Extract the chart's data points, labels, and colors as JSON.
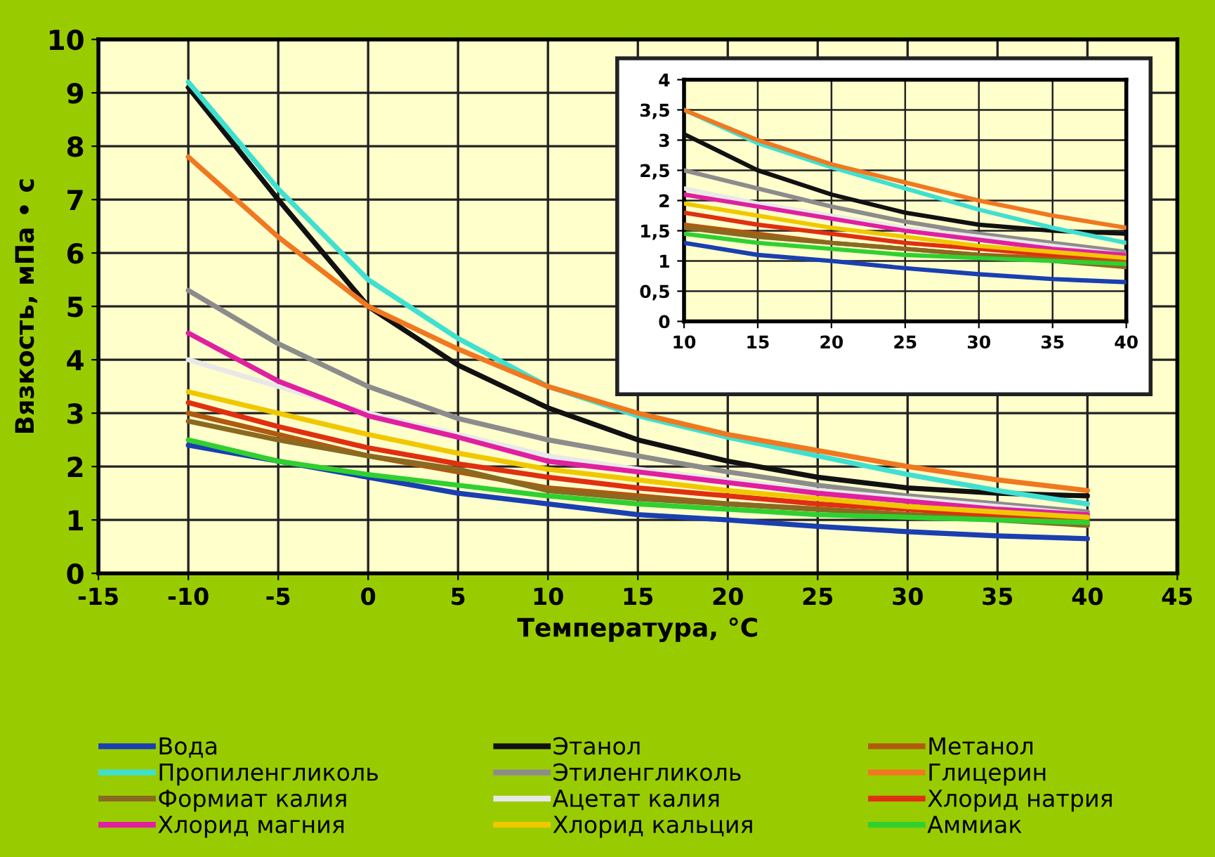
{
  "chart_data": [
    {
      "type": "line",
      "xlabel": "Температура, °C",
      "ylabel": "Вязкость, мПа • с",
      "x": [
        -10,
        -5,
        0,
        5,
        10,
        15,
        20,
        25,
        30,
        35,
        40
      ],
      "xlim": [
        -15,
        45
      ],
      "xticks": [
        -15,
        -10,
        -5,
        0,
        5,
        10,
        15,
        20,
        25,
        30,
        35,
        40,
        45
      ],
      "ylim": [
        0,
        10
      ],
      "yticks": [
        0,
        1,
        2,
        3,
        4,
        5,
        6,
        7,
        8,
        9,
        10
      ],
      "grid": true,
      "legend": "bottom",
      "marker": "none",
      "line_style": "solid",
      "series": [
        {
          "name": "Вода",
          "color": "#1a3fb0",
          "values": [
            2.4,
            2.1,
            1.8,
            1.5,
            1.3,
            1.1,
            1.0,
            0.88,
            0.78,
            0.7,
            0.65
          ]
        },
        {
          "name": "Этанол",
          "color": "#111111",
          "values": [
            9.1,
            7.0,
            5.0,
            3.9,
            3.1,
            2.5,
            2.1,
            1.8,
            1.6,
            1.5,
            1.45
          ]
        },
        {
          "name": "Метанол",
          "color": "#b05a10",
          "values": [
            3.0,
            2.6,
            2.2,
            1.9,
            1.6,
            1.45,
            1.3,
            1.2,
            1.1,
            1.05,
            1.0
          ]
        },
        {
          "name": "Пропиленгликоль",
          "color": "#40e0d0",
          "values": [
            9.2,
            7.2,
            5.5,
            4.4,
            3.5,
            2.95,
            2.55,
            2.2,
            1.85,
            1.55,
            1.3
          ]
        },
        {
          "name": "Этиленгликоль",
          "color": "#8c8c8c",
          "values": [
            5.3,
            4.3,
            3.5,
            2.9,
            2.5,
            2.2,
            1.9,
            1.65,
            1.45,
            1.3,
            1.15
          ]
        },
        {
          "name": "Глицерин",
          "color": "#f07820",
          "values": [
            7.8,
            6.3,
            5.0,
            4.2,
            3.5,
            3.0,
            2.6,
            2.3,
            2.0,
            1.75,
            1.55
          ]
        },
        {
          "name": "Формиат калия",
          "color": "#8a6a20",
          "values": [
            2.85,
            2.5,
            2.2,
            1.95,
            1.55,
            1.4,
            1.3,
            1.2,
            1.1,
            1.0,
            0.9
          ]
        },
        {
          "name": "Ацетат калия",
          "color": "#e8e8e8",
          "values": [
            4.0,
            3.5,
            3.0,
            2.6,
            2.2,
            1.95,
            1.75,
            1.55,
            1.4,
            1.25,
            1.1
          ]
        },
        {
          "name": "Хлорид натрия",
          "color": "#e03010",
          "values": [
            3.2,
            2.75,
            2.35,
            2.05,
            1.8,
            1.6,
            1.45,
            1.3,
            1.2,
            1.1,
            1.05
          ]
        },
        {
          "name": "Хлорид магния",
          "color": "#e020a0",
          "values": [
            4.5,
            3.6,
            2.95,
            2.55,
            2.1,
            1.9,
            1.7,
            1.5,
            1.35,
            1.2,
            1.1
          ]
        },
        {
          "name": "Хлорид кальция",
          "color": "#f0c800",
          "values": [
            3.4,
            3.0,
            2.6,
            2.25,
            1.95,
            1.75,
            1.55,
            1.4,
            1.25,
            1.15,
            1.05
          ]
        },
        {
          "name": "Аммиак",
          "color": "#30d030",
          "values": [
            2.5,
            2.1,
            1.85,
            1.65,
            1.45,
            1.3,
            1.2,
            1.1,
            1.05,
            1.0,
            0.95
          ]
        }
      ]
    },
    {
      "type": "line",
      "x": [
        10,
        15,
        20,
        25,
        30,
        35,
        40
      ],
      "xlim": [
        10,
        40
      ],
      "xticks": [
        10,
        15,
        20,
        25,
        30,
        35,
        40
      ],
      "ylim": [
        0,
        4
      ],
      "yticks": [
        0,
        {
          "value": 0.5,
          "label": "0,5"
        },
        1,
        {
          "value": 1.5,
          "label": "1,5"
        },
        2,
        {
          "value": 2.5,
          "label": "2,5"
        },
        3,
        {
          "value": 3.5,
          "label": "3,5"
        },
        4
      ],
      "grid": true,
      "marker": "none",
      "line_style": "solid",
      "series": [
        {
          "color": "#1a3fb0",
          "values": [
            1.3,
            1.1,
            1.0,
            0.88,
            0.78,
            0.7,
            0.65
          ]
        },
        {
          "color": "#111111",
          "values": [
            3.1,
            2.5,
            2.1,
            1.8,
            1.6,
            1.5,
            1.45
          ]
        },
        {
          "color": "#b05a10",
          "values": [
            1.6,
            1.45,
            1.3,
            1.2,
            1.1,
            1.05,
            1.0
          ]
        },
        {
          "color": "#40e0d0",
          "values": [
            3.5,
            2.95,
            2.55,
            2.2,
            1.85,
            1.55,
            1.3
          ]
        },
        {
          "color": "#8c8c8c",
          "values": [
            2.5,
            2.2,
            1.9,
            1.65,
            1.45,
            1.3,
            1.15
          ]
        },
        {
          "color": "#f07820",
          "values": [
            3.5,
            3.0,
            2.6,
            2.3,
            2.0,
            1.75,
            1.55
          ]
        },
        {
          "color": "#8a6a20",
          "values": [
            1.55,
            1.4,
            1.3,
            1.2,
            1.1,
            1.0,
            0.9
          ]
        },
        {
          "color": "#e8e8e8",
          "values": [
            2.2,
            1.95,
            1.75,
            1.55,
            1.4,
            1.25,
            1.1
          ]
        },
        {
          "color": "#e03010",
          "values": [
            1.8,
            1.6,
            1.45,
            1.3,
            1.2,
            1.1,
            1.05
          ]
        },
        {
          "color": "#e020a0",
          "values": [
            2.1,
            1.9,
            1.7,
            1.5,
            1.35,
            1.2,
            1.1
          ]
        },
        {
          "color": "#f0c800",
          "values": [
            1.95,
            1.75,
            1.55,
            1.4,
            1.25,
            1.15,
            1.05
          ]
        },
        {
          "color": "#30d030",
          "values": [
            1.45,
            1.3,
            1.2,
            1.1,
            1.05,
            1.0,
            0.95
          ]
        }
      ]
    }
  ]
}
